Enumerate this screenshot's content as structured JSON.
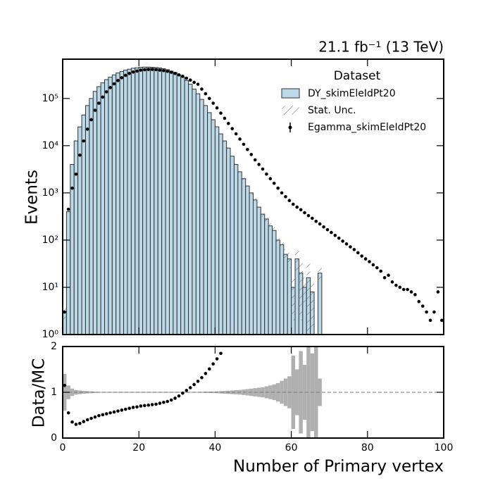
{
  "chart_data": [
    {
      "type": "histogram",
      "lumi": "21.1 fb⁻¹ (13 TeV)",
      "ylabel": "Events",
      "log_y": true,
      "ylim": [
        1,
        680000
      ],
      "yticks": [
        {
          "value": 1,
          "label": "10⁰"
        },
        {
          "value": 10,
          "label": "10¹"
        },
        {
          "value": 100,
          "label": "10²"
        },
        {
          "value": 1000,
          "label": "10³"
        },
        {
          "value": 10000,
          "label": "10⁴"
        },
        {
          "value": 100000,
          "label": "10⁵"
        }
      ],
      "xlim": [
        0,
        100
      ],
      "legend_title": "Dataset",
      "legend": "upper right",
      "bins": [
        0,
        1,
        2,
        3,
        4,
        5,
        6,
        7,
        8,
        9,
        10,
        11,
        12,
        13,
        14,
        15,
        16,
        17,
        18,
        19,
        20,
        21,
        22,
        23,
        24,
        25,
        26,
        27,
        28,
        29,
        30,
        31,
        32,
        33,
        34,
        35,
        36,
        37,
        38,
        39,
        40,
        41,
        42,
        43,
        44,
        45,
        46,
        47,
        48,
        49,
        50,
        51,
        52,
        53,
        54,
        55,
        56,
        57,
        58,
        59,
        60,
        61,
        62,
        63,
        64,
        65,
        66,
        67,
        68,
        69
      ],
      "series": [
        {
          "name": "DY_skimEleIdPt20",
          "color": "#bcd9ea",
          "values": [
            3,
            400,
            4000,
            12600,
            25000,
            44700,
            70800,
            100000,
            141000,
            178000,
            214000,
            251000,
            282000,
            316000,
            347000,
            372000,
            398000,
            417000,
            437000,
            447000,
            457000,
            462000,
            462000,
            457000,
            452000,
            442000,
            427000,
            407000,
            380000,
            355000,
            316000,
            282000,
            240000,
            200000,
            158000,
            126000,
            95500,
            70800,
            50100,
            35500,
            25100,
            17800,
            12600,
            8900,
            6000,
            4000,
            2800,
            2000,
            1400,
            1000,
            710,
            500,
            355,
            280,
            200,
            160,
            100,
            80,
            50,
            40,
            10,
            40,
            20,
            10,
            16,
            8,
            0,
            20,
            0
          ],
          "stat_unc_name": "Stat. Unc.",
          "stat_unc": [
            0.4,
            0.15,
            0.08,
            0.05,
            0.04,
            0.03,
            0.025,
            0.02,
            0.015,
            0.01,
            0.01,
            0.01,
            0.01,
            0.01,
            0.01,
            0.01,
            0.01,
            0.01,
            0.01,
            0.01,
            0.01,
            0.01,
            0.01,
            0.01,
            0.01,
            0.01,
            0.01,
            0.01,
            0.01,
            0.01,
            0.01,
            0.01,
            0.01,
            0.01,
            0.01,
            0.01,
            0.012,
            0.014,
            0.016,
            0.018,
            0.02,
            0.025,
            0.03,
            0.035,
            0.04,
            0.045,
            0.05,
            0.06,
            0.07,
            0.08,
            0.09,
            0.1,
            0.11,
            0.13,
            0.15,
            0.17,
            0.2,
            0.25,
            0.3,
            0.35,
            0.8,
            0.5,
            0.9,
            0.6,
            1.0,
            0.85,
            1.0,
            0.3,
            0
          ]
        },
        {
          "name": "Egamma_skimEleIdPt20",
          "color": "#000000",
          "x": [
            0.5,
            1.5,
            2.5,
            3.5,
            4.5,
            5.5,
            6.5,
            7.5,
            8.5,
            9.5,
            10.5,
            11.5,
            12.5,
            13.5,
            14.5,
            15.5,
            16.5,
            17.5,
            18.5,
            19.5,
            20.5,
            21.5,
            22.5,
            23.5,
            24.5,
            25.5,
            26.5,
            27.5,
            28.5,
            29.5,
            30.5,
            31.5,
            32.5,
            33.5,
            34.5,
            35.5,
            36.5,
            37.5,
            38.5,
            39.5,
            40.5,
            41.5,
            42.5,
            43.5,
            44.5,
            45.5,
            46.5,
            47.5,
            48.5,
            49.5,
            50.5,
            51.5,
            52.5,
            53.5,
            54.5,
            55.5,
            56.5,
            57.5,
            58.5,
            59.5,
            60.5,
            61.5,
            62.5,
            63.5,
            64.5,
            65.5,
            66.5,
            67.5,
            68.5,
            69.5,
            70.5,
            71.5,
            72.5,
            73.5,
            74.5,
            75.5,
            76.5,
            77.5,
            78.5,
            79.5,
            80.5,
            81.5,
            82.5,
            83.5,
            84.5,
            85.5,
            86.5,
            87.5,
            88.5,
            89.5,
            90.5,
            91.5,
            92.5,
            93.5,
            94.5,
            95.5,
            96.5,
            97.5,
            98.5,
            99.5
          ],
          "values": [
            3,
            450,
            1260,
            2500,
            6300,
            12600,
            22400,
            35500,
            56200,
            79400,
            107000,
            138000,
            170000,
            204000,
            240000,
            275000,
            309000,
            339000,
            363000,
            380000,
            398000,
            407000,
            412000,
            412000,
            407000,
            398000,
            389000,
            376000,
            359000,
            339000,
            316000,
            295000,
            269000,
            245000,
            219000,
            200000,
            158000,
            126000,
            100000,
            79400,
            63100,
            49000,
            38000,
            29500,
            22900,
            17800,
            13800,
            10700,
            8300,
            6500,
            5000,
            4000,
            3200,
            2500,
            2000,
            1600,
            1260,
            1000,
            830,
            690,
            575,
            500,
            440,
            380,
            330,
            290,
            250,
            220,
            190,
            166,
            145,
            126,
            110,
            95,
            83,
            72,
            63,
            54,
            46,
            40,
            35,
            30,
            26,
            22,
            16,
            18,
            13,
            11,
            10,
            9,
            9,
            8,
            7,
            5,
            4,
            3,
            2,
            3,
            8,
            2
          ]
        }
      ]
    },
    {
      "type": "ratio",
      "ylabel": "Data/MC",
      "xlabel": "Number of Primary vertex",
      "xlim": [
        0,
        100
      ],
      "xticks": [
        0,
        20,
        40,
        60,
        80,
        100
      ],
      "ylim": [
        0,
        2
      ],
      "yticks": [
        0,
        1,
        2
      ],
      "reference": 1,
      "color": "#b0b0b0",
      "x": [
        0.5,
        1.5,
        2.5,
        3.5,
        4.5,
        5.5,
        6.5,
        7.5,
        8.5,
        9.5,
        10.5,
        11.5,
        12.5,
        13.5,
        14.5,
        15.5,
        16.5,
        17.5,
        18.5,
        19.5,
        20.5,
        21.5,
        22.5,
        23.5,
        24.5,
        25.5,
        26.5,
        27.5,
        28.5,
        29.5,
        30.5,
        31.5,
        32.5,
        33.5,
        34.5,
        35.5,
        36.5,
        37.5,
        38.5,
        39.5,
        40.5,
        41.5
      ],
      "values": [
        1.15,
        0.55,
        0.35,
        0.3,
        0.32,
        0.36,
        0.4,
        0.43,
        0.46,
        0.49,
        0.51,
        0.53,
        0.55,
        0.57,
        0.59,
        0.61,
        0.63,
        0.65,
        0.67,
        0.68,
        0.7,
        0.71,
        0.72,
        0.73,
        0.74,
        0.76,
        0.78,
        0.8,
        0.83,
        0.87,
        0.92,
        0.98,
        1.04,
        1.1,
        1.17,
        1.24,
        1.32,
        1.41,
        1.51,
        1.62,
        1.73,
        1.85
      ]
    }
  ]
}
